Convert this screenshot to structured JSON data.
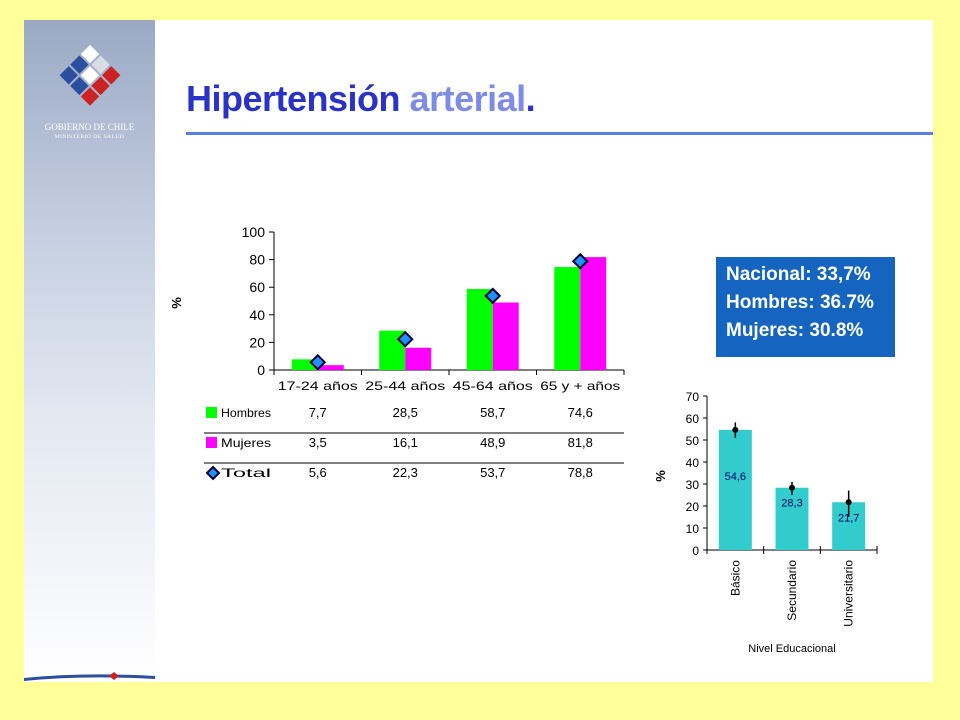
{
  "title": {
    "main": "Hipertensión",
    "accent": "arterial",
    "dot": "."
  },
  "logo": {
    "line1": "GOBIERNO DE CHILE",
    "line2": "MINISTERIO DE SALUD"
  },
  "stats": {
    "nacional": "Nacional: 33,7%",
    "hombres": "Hombres: 36.7%",
    "mujeres": "Mujeres: 30.8%"
  },
  "colors": {
    "hombres": "#00ff00",
    "mujeres": "#ff00ff",
    "total": "#1e90ff",
    "education_bar": "#33cccc",
    "title": "#2a33c8",
    "title_accent": "#7f8ce6",
    "stats_box": "#1565c0"
  },
  "chart_data": [
    {
      "type": "bar",
      "ylabel": "%",
      "ylim": [
        0,
        100
      ],
      "yticks": [
        0,
        20,
        40,
        60,
        80,
        100
      ],
      "categories": [
        "17-24 años",
        "25-44 años",
        "45-64 años",
        "65 y + años"
      ],
      "series": [
        {
          "name": "Hombres",
          "kind": "bar",
          "values": [
            7.7,
            28.5,
            58.7,
            74.6
          ],
          "labels": [
            "7,7",
            "28,5",
            "58,7",
            "74,6"
          ]
        },
        {
          "name": "Mujeres",
          "kind": "bar",
          "values": [
            3.5,
            16.1,
            48.9,
            81.8
          ],
          "labels": [
            "3,5",
            "16,1",
            "48,9",
            "81,8"
          ]
        },
        {
          "name": "Total",
          "kind": "marker",
          "values": [
            5.6,
            22.3,
            53.7,
            78.8
          ],
          "labels": [
            "5,6",
            "22,3",
            "53,7",
            "78,8"
          ]
        }
      ],
      "data_table": true
    },
    {
      "type": "bar",
      "ylabel": "%",
      "xlabel": "Nivel Educacional",
      "ylim": [
        0,
        70
      ],
      "yticks": [
        0,
        10,
        20,
        30,
        40,
        50,
        60,
        70
      ],
      "categories": [
        "Básico",
        "Secundario",
        "Universitario"
      ],
      "values": [
        54.6,
        28.3,
        21.7
      ],
      "value_labels": [
        "54,6",
        "28,3",
        "21,7"
      ],
      "error_low": [
        51,
        25,
        15
      ],
      "error_high": [
        58,
        31,
        27
      ]
    }
  ]
}
